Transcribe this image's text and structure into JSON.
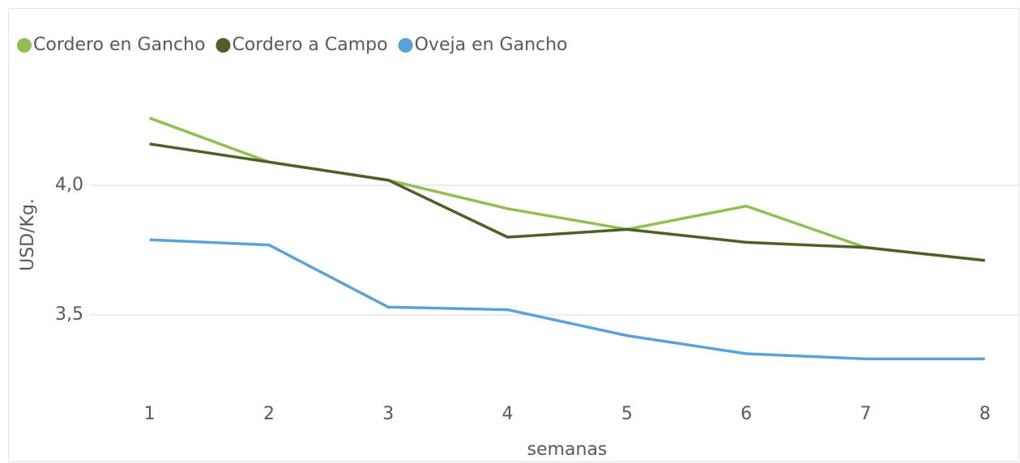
{
  "chart_data": {
    "type": "line",
    "categories": [
      "1",
      "2",
      "3",
      "4",
      "5",
      "6",
      "7",
      "8"
    ],
    "series": [
      {
        "name": "Cordero en Gancho",
        "color": "#92c050",
        "values": [
          4.26,
          4.09,
          4.02,
          3.91,
          3.83,
          3.92,
          3.76,
          3.71
        ]
      },
      {
        "name": "Cordero a Campo",
        "color": "#4b6125",
        "values": [
          4.16,
          4.09,
          4.02,
          3.8,
          3.83,
          3.78,
          3.76,
          3.71
        ]
      },
      {
        "name": "Oveja en Gancho",
        "color": "#5aa3d8",
        "values": [
          3.79,
          3.77,
          3.53,
          3.52,
          3.42,
          3.35,
          3.33,
          3.33
        ]
      }
    ],
    "ylim": [
      3.2,
      4.4
    ],
    "yticks": [
      {
        "value": 3.5,
        "label": "3,5"
      },
      {
        "value": 4.0,
        "label": "4,0"
      }
    ],
    "grid": true,
    "legend": "top-left",
    "y_label": "USD/Kg.",
    "x_label": "semanas"
  }
}
